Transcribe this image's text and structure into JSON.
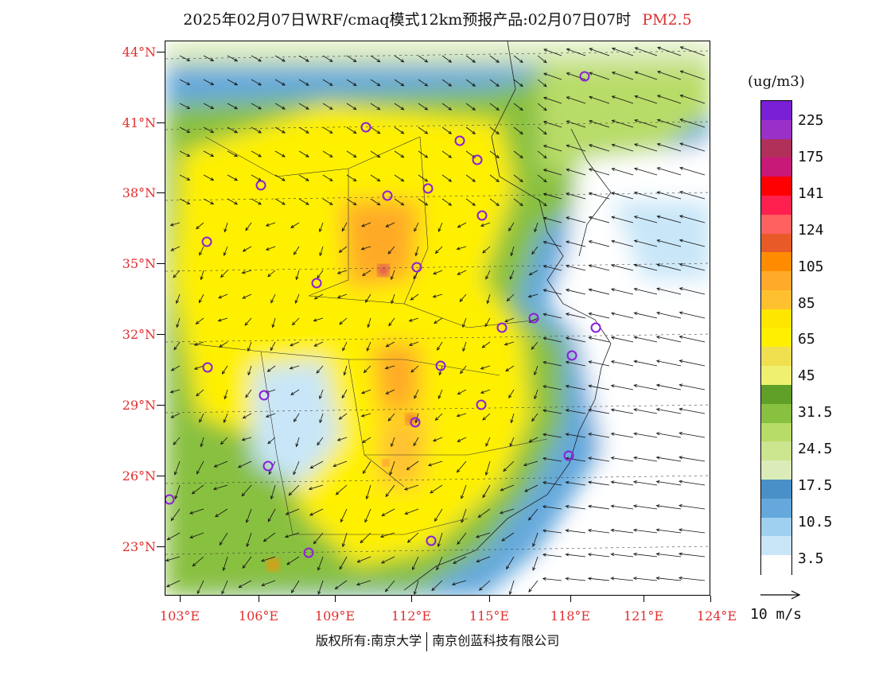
{
  "title": {
    "main": "2025年02月07日WRF/cmaq模式12km预报产品:02月07日07时",
    "species": "PM2.5",
    "species_color": "#e03030"
  },
  "axes": {
    "lat_labels": [
      "44°N",
      "41°N",
      "38°N",
      "35°N",
      "32°N",
      "29°N",
      "26°N",
      "23°N"
    ],
    "lon_labels": [
      "103°E",
      "106°E",
      "109°E",
      "112°E",
      "115°E",
      "118°E",
      "121°E",
      "124°E"
    ],
    "label_color": "#e03030"
  },
  "colorbar": {
    "unit": "(ug/m3)",
    "labels": [
      "225",
      "175",
      "141",
      "124",
      "105",
      "85",
      "65",
      "45",
      "31.5",
      "24.5",
      "17.5",
      "10.5",
      "3.5"
    ],
    "colors_top_to_bottom": [
      "#7a1fd6",
      "#9b30c8",
      "#b0305a",
      "#c81878",
      "#ff0000",
      "#ff2050",
      "#ff6060",
      "#e85a28",
      "#ff8c00",
      "#ffaa28",
      "#ffc030",
      "#ffe600",
      "#fff000",
      "#f0e050",
      "#f0f070",
      "#60a028",
      "#88c040",
      "#b8dc68",
      "#cce690",
      "#dcecb8",
      "#4a90c8",
      "#64a8dc",
      "#a0d0f0",
      "#c8e6f8",
      "#ffffff"
    ]
  },
  "wind_reference": {
    "label": "10 m/s"
  },
  "footer": {
    "left": "版权所有:南京大学",
    "right": "南京创蓝科技有限公司"
  }
}
